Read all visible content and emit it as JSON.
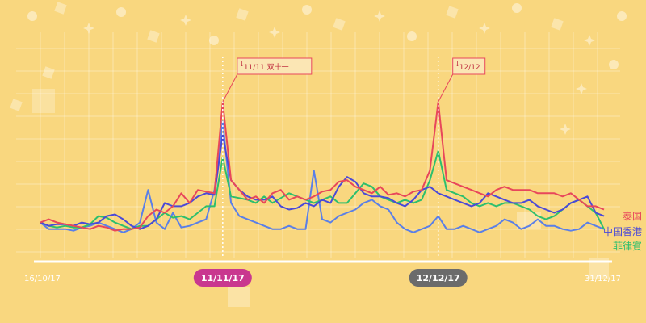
{
  "chart_data": {
    "type": "line",
    "x_start_label": "16/10/17",
    "x_end_label": "31/12/17",
    "ylim": [
      0,
      100
    ],
    "grid": true,
    "legend_position": "right",
    "highlights": [
      {
        "label": "11/11/17",
        "callout": "11/11 双十一",
        "color": "#c9378f"
      },
      {
        "label": "12/12/17",
        "callout": "12/12",
        "color": "#6b6b6b"
      }
    ],
    "series": [
      {
        "name": "泰国",
        "color": "#e8475b",
        "values": [
          18,
          20,
          18,
          17,
          16,
          15,
          14,
          16,
          15,
          13,
          14,
          14,
          15,
          22,
          26,
          24,
          28,
          36,
          30,
          38,
          37,
          36,
          92,
          44,
          38,
          32,
          34,
          30,
          36,
          38,
          32,
          34,
          32,
          34,
          37,
          38,
          43,
          44,
          40,
          38,
          36,
          40,
          35,
          36,
          34,
          37,
          38,
          50,
          92,
          44,
          42,
          40,
          38,
          36,
          34,
          38,
          40,
          38,
          38,
          38,
          36,
          36,
          36,
          34,
          36,
          32,
          28,
          28,
          26
        ]
      },
      {
        "name": "中国香港",
        "color": "#4a49d8",
        "values": [
          18,
          16,
          17,
          17,
          16,
          18,
          17,
          18,
          22,
          23,
          20,
          16,
          14,
          16,
          20,
          30,
          28,
          28,
          30,
          34,
          36,
          35,
          72,
          44,
          38,
          34,
          32,
          32,
          34,
          28,
          26,
          27,
          30,
          28,
          32,
          30,
          40,
          46,
          43,
          36,
          34,
          34,
          33,
          30,
          28,
          32,
          38,
          40,
          36,
          34,
          32,
          30,
          28,
          30,
          36,
          34,
          32,
          30,
          30,
          32,
          28,
          26,
          24,
          26,
          30,
          32,
          34,
          24,
          22
        ]
      },
      {
        "name": "菲律賓",
        "color": "#2dbf6d",
        "values": [
          18,
          16,
          15,
          16,
          15,
          15,
          17,
          22,
          21,
          18,
          16,
          14,
          16,
          16,
          20,
          24,
          21,
          22,
          20,
          24,
          28,
          28,
          58,
          34,
          33,
          32,
          30,
          34,
          30,
          33,
          36,
          34,
          32,
          30,
          32,
          34,
          30,
          30,
          36,
          42,
          40,
          34,
          32,
          30,
          32,
          30,
          32,
          44,
          62,
          38,
          36,
          34,
          30,
          28,
          30,
          28,
          30,
          30,
          28,
          26,
          22,
          20,
          22,
          26,
          30,
          32,
          28,
          24,
          14
        ]
      },
      {
        "name": "",
        "color": "#5a7fe8",
        "values": [
          18,
          14,
          14,
          14,
          13,
          15,
          16,
          18,
          16,
          14,
          12,
          14,
          18,
          38,
          18,
          14,
          24,
          15,
          16,
          18,
          20,
          38,
          80,
          30,
          22,
          20,
          18,
          16,
          14,
          14,
          16,
          14,
          14,
          50,
          20,
          18,
          22,
          24,
          26,
          30,
          32,
          28,
          26,
          18,
          14,
          12,
          14,
          16,
          22,
          14,
          14,
          16,
          14,
          12,
          14,
          16,
          20,
          18,
          14,
          16,
          20,
          16,
          16,
          14,
          13,
          14,
          18,
          16,
          14
        ]
      }
    ]
  }
}
